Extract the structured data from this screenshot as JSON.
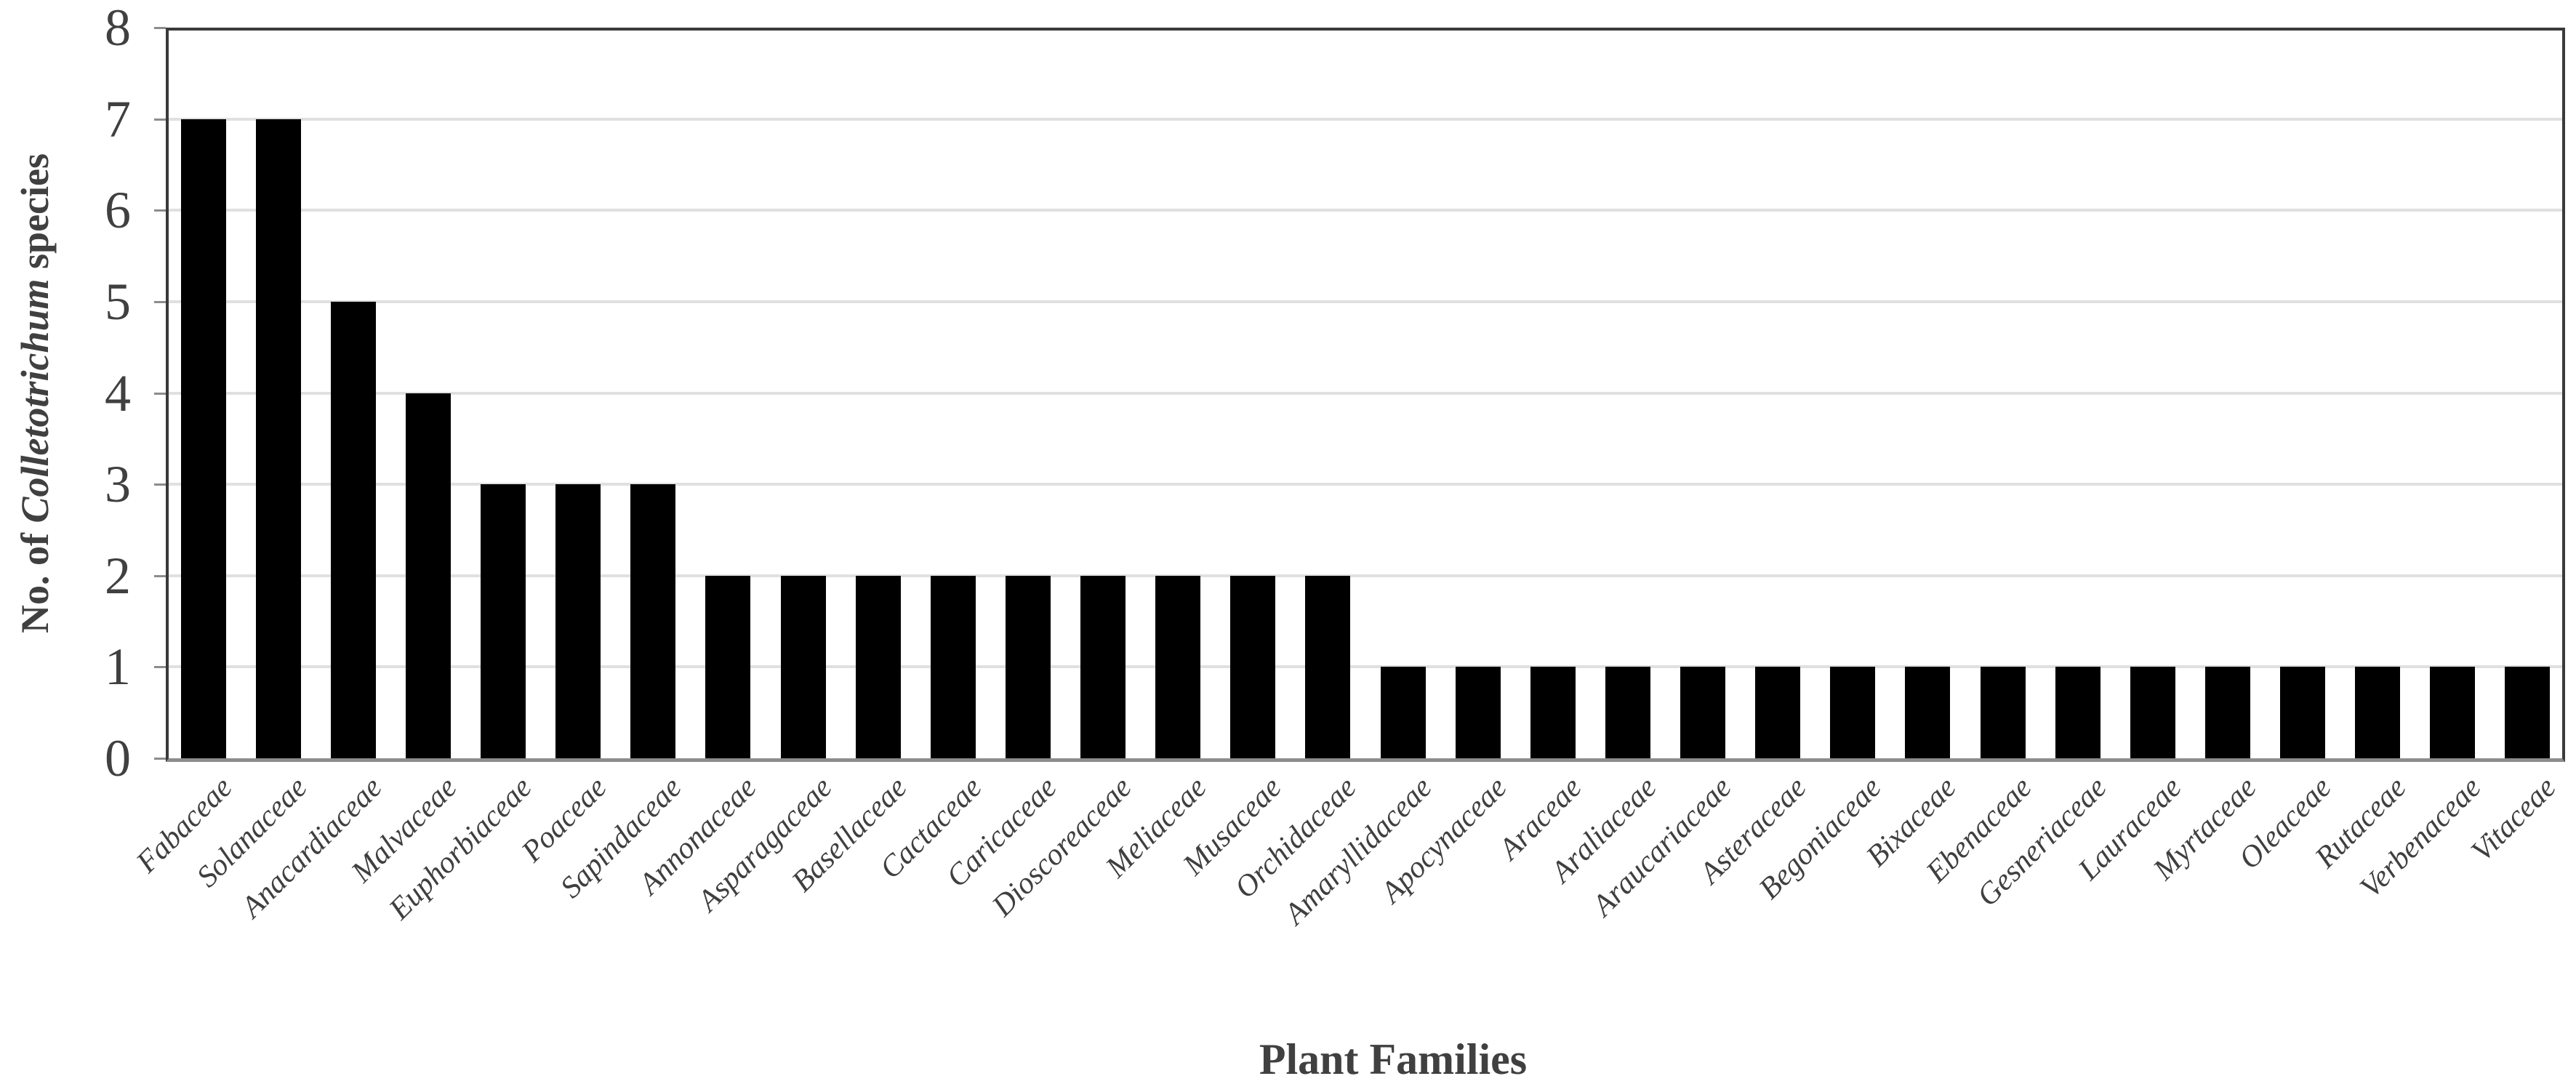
{
  "chart_data": {
    "type": "bar",
    "title": "",
    "xlabel": "Plant Families",
    "ylabel": "No. of Colletotrichum species",
    "ylabel_styled": {
      "prefix": "No. of ",
      "italic": "Colletotrichum",
      "suffix": " species"
    },
    "categories": [
      "Fabaceae",
      "Solanaceae",
      "Anacardiaceae",
      "Malvaceae",
      "Euphorbiaceae",
      "Poaceae",
      "Sapindaceae",
      "Annonaceae",
      "Asparagaceae",
      "Basellaceae",
      "Cactaceae",
      "Caricaceae",
      "Dioscoreaceae",
      "Meliaceae",
      "Musaceae",
      "Orchidaceae",
      "Amaryllidaceae",
      "Apocynaceae",
      "Araceae",
      "Araliaceae",
      "Araucariaceae",
      "Asteraceae",
      "Begoniaceae",
      "Bixaceae",
      "Ebenaceae",
      "Gesneriaceae",
      "Lauraceae",
      "Myrtaceae",
      "Oleaceae",
      "Rutaceae",
      "Verbenaceae",
      "Vitaceae"
    ],
    "values": [
      7,
      7,
      5,
      4,
      3,
      3,
      3,
      2,
      2,
      2,
      2,
      2,
      2,
      2,
      2,
      2,
      1,
      1,
      1,
      1,
      1,
      1,
      1,
      1,
      1,
      1,
      1,
      1,
      1,
      1,
      1,
      1
    ],
    "ylim": [
      0,
      8
    ],
    "yticks": [
      0,
      1,
      2,
      3,
      4,
      5,
      6,
      7,
      8
    ],
    "grid": "horizontal",
    "legend": "none",
    "colors": {
      "bar": "#000000",
      "gridline": "#e0e0e0",
      "plot_border": "#3a3a3a",
      "x_axis_line": "#8c8c8c",
      "tick_text": "#404040",
      "category_text": "#3f3f3f",
      "background": "#ffffff"
    }
  }
}
